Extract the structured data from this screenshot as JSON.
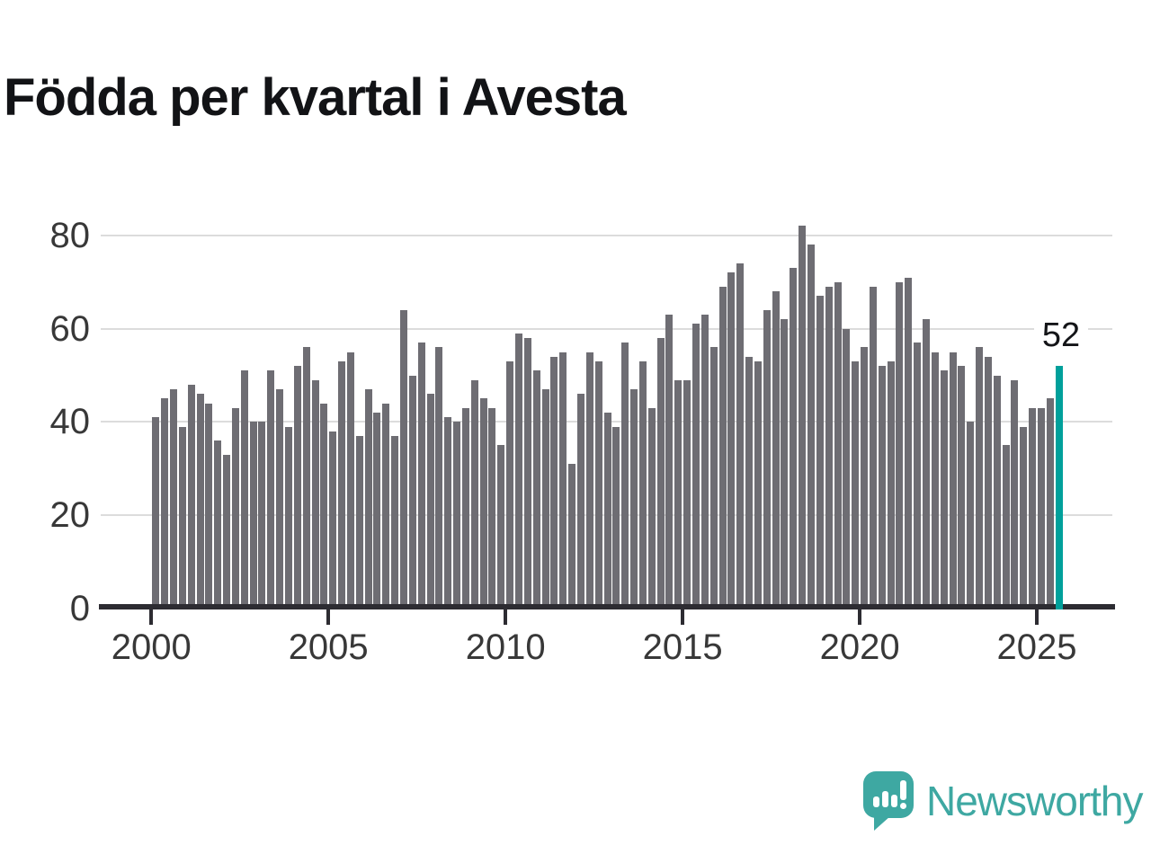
{
  "title": "Födda per kvartal i Avesta",
  "annotation": {
    "label": "52"
  },
  "logo": {
    "text": "Newsworthy",
    "icon": "newsworthy-speech-bubble-barchart-icon"
  },
  "colors": {
    "bar": "#6e6d73",
    "highlight": "#00a09b",
    "grid": "#dcdcdc",
    "axis": "#2d2c32",
    "tick_label": "#383838",
    "title": "#121316",
    "logo": "#3ea8a2"
  },
  "chart_data": {
    "type": "bar",
    "title": "Födda per kvartal i Avesta",
    "xlabel": "",
    "ylabel": "",
    "ylim": [
      0,
      86
    ],
    "yticks": [
      0,
      20,
      40,
      60,
      80
    ],
    "xticks": [
      "2000",
      "2005",
      "2010",
      "2015",
      "2020",
      "2025"
    ],
    "grid": "horizontal",
    "legend": "none",
    "highlight_index": 102,
    "highlight_label": "52",
    "x": [
      "2000 Q1",
      "2000 Q2",
      "2000 Q3",
      "2000 Q4",
      "2001 Q1",
      "2001 Q2",
      "2001 Q3",
      "2001 Q4",
      "2002 Q1",
      "2002 Q2",
      "2002 Q3",
      "2002 Q4",
      "2003 Q1",
      "2003 Q2",
      "2003 Q3",
      "2003 Q4",
      "2004 Q1",
      "2004 Q2",
      "2004 Q3",
      "2004 Q4",
      "2005 Q1",
      "2005 Q2",
      "2005 Q3",
      "2005 Q4",
      "2006 Q1",
      "2006 Q2",
      "2006 Q3",
      "2006 Q4",
      "2007 Q1",
      "2007 Q2",
      "2007 Q3",
      "2007 Q4",
      "2008 Q1",
      "2008 Q2",
      "2008 Q3",
      "2008 Q4",
      "2009 Q1",
      "2009 Q2",
      "2009 Q3",
      "2009 Q4",
      "2010 Q1",
      "2010 Q2",
      "2010 Q3",
      "2010 Q4",
      "2011 Q1",
      "2011 Q2",
      "2011 Q3",
      "2011 Q4",
      "2012 Q1",
      "2012 Q2",
      "2012 Q3",
      "2012 Q4",
      "2013 Q1",
      "2013 Q2",
      "2013 Q3",
      "2013 Q4",
      "2014 Q1",
      "2014 Q2",
      "2014 Q3",
      "2014 Q4",
      "2015 Q1",
      "2015 Q2",
      "2015 Q3",
      "2015 Q4",
      "2016 Q1",
      "2016 Q2",
      "2016 Q3",
      "2016 Q4",
      "2017 Q1",
      "2017 Q2",
      "2017 Q3",
      "2017 Q4",
      "2018 Q1",
      "2018 Q2",
      "2018 Q3",
      "2018 Q4",
      "2019 Q1",
      "2019 Q2",
      "2019 Q3",
      "2019 Q4",
      "2020 Q1",
      "2020 Q2",
      "2020 Q3",
      "2020 Q4",
      "2021 Q1",
      "2021 Q2",
      "2021 Q3",
      "2021 Q4",
      "2022 Q1",
      "2022 Q2",
      "2022 Q3",
      "2022 Q4",
      "2023 Q1",
      "2023 Q2",
      "2023 Q3",
      "2023 Q4",
      "2024 Q1",
      "2024 Q2",
      "2024 Q3",
      "2024 Q4",
      "2025 Q1",
      "2025 Q2",
      "2025 Q3"
    ],
    "values": [
      41,
      45,
      47,
      39,
      48,
      46,
      44,
      36,
      33,
      43,
      51,
      40,
      40,
      51,
      47,
      39,
      52,
      56,
      49,
      44,
      38,
      53,
      55,
      37,
      47,
      42,
      44,
      37,
      64,
      50,
      57,
      46,
      56,
      41,
      40,
      43,
      49,
      45,
      43,
      35,
      53,
      59,
      58,
      51,
      47,
      54,
      55,
      31,
      46,
      55,
      53,
      42,
      39,
      57,
      47,
      53,
      43,
      58,
      63,
      49,
      49,
      61,
      63,
      56,
      69,
      72,
      74,
      54,
      53,
      64,
      68,
      62,
      73,
      82,
      78,
      67,
      69,
      70,
      60,
      53,
      56,
      69,
      52,
      53,
      70,
      71,
      57,
      62,
      55,
      51,
      55,
      52,
      40,
      56,
      54,
      50,
      35,
      49,
      39,
      43,
      43,
      45,
      52
    ]
  }
}
